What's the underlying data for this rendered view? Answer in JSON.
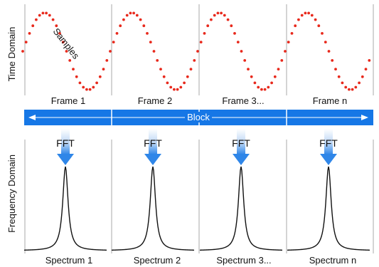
{
  "axes": {
    "time_domain_label": "Time Domain",
    "frequency_domain_label": "Frequency Domain"
  },
  "annotation": {
    "samples_label": "Samples"
  },
  "frames": [
    {
      "label": "Frame 1"
    },
    {
      "label": "Frame 2"
    },
    {
      "label": "Frame 3..."
    },
    {
      "label": "Frame n"
    }
  ],
  "block": {
    "label": "Block"
  },
  "fft": [
    {
      "label": "FFT"
    },
    {
      "label": "FFT"
    },
    {
      "label": "FFT"
    },
    {
      "label": "FFT"
    }
  ],
  "spectra": [
    {
      "label": "Spectrum 1"
    },
    {
      "label": "Spectrum 2"
    },
    {
      "label": "Spectrum 3..."
    },
    {
      "label": "Spectrum n"
    }
  ],
  "colors": {
    "sample_dot": "#e8291c",
    "block_bar": "#1677e6",
    "arrow": "#2f86e8",
    "arrow_light": "#e3eefb",
    "divider": "#b8b8b8",
    "spectrum_line": "#111111"
  }
}
